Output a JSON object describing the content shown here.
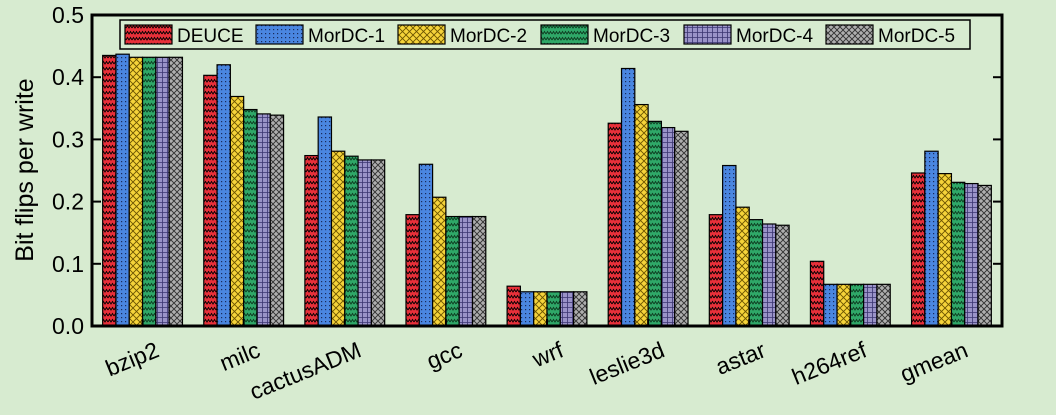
{
  "chart_data": {
    "type": "bar",
    "title": "",
    "xlabel": "",
    "ylabel": "Bit flips per write",
    "ylim": [
      0,
      0.5
    ],
    "yticks": [
      "0.0",
      "0.1",
      "0.2",
      "0.3",
      "0.4",
      "0.5"
    ],
    "ytick_values": [
      0,
      0.1,
      0.2,
      0.3,
      0.4,
      0.5
    ],
    "grid": false,
    "legend_position": "top",
    "categories": [
      "bzip2",
      "milc",
      "cactusADM",
      "gcc",
      "wrf",
      "leslie3d",
      "astar",
      "h264ref",
      "gmean"
    ],
    "series": [
      {
        "name": "DEUCE",
        "color": "#e8303a",
        "values": [
          0.435,
          0.403,
          0.274,
          0.179,
          0.064,
          0.326,
          0.179,
          0.104,
          0.246
        ]
      },
      {
        "name": "MorDC-1",
        "color": "#4a86e0",
        "values": [
          0.437,
          0.42,
          0.336,
          0.26,
          0.055,
          0.414,
          0.258,
          0.067,
          0.281
        ]
      },
      {
        "name": "MorDC-2",
        "color": "#f5d33a",
        "values": [
          0.432,
          0.369,
          0.281,
          0.207,
          0.055,
          0.356,
          0.191,
          0.067,
          0.245
        ]
      },
      {
        "name": "MorDC-3",
        "color": "#2fa868",
        "values": [
          0.432,
          0.348,
          0.273,
          0.176,
          0.055,
          0.329,
          0.171,
          0.067,
          0.231
        ]
      },
      {
        "name": "MorDC-4",
        "color": "#9a93c8",
        "values": [
          0.432,
          0.341,
          0.267,
          0.176,
          0.055,
          0.319,
          0.164,
          0.067,
          0.229
        ]
      },
      {
        "name": "MorDC-5",
        "color": "#aeaeae",
        "values": [
          0.432,
          0.339,
          0.267,
          0.176,
          0.055,
          0.313,
          0.162,
          0.067,
          0.226
        ]
      }
    ]
  }
}
